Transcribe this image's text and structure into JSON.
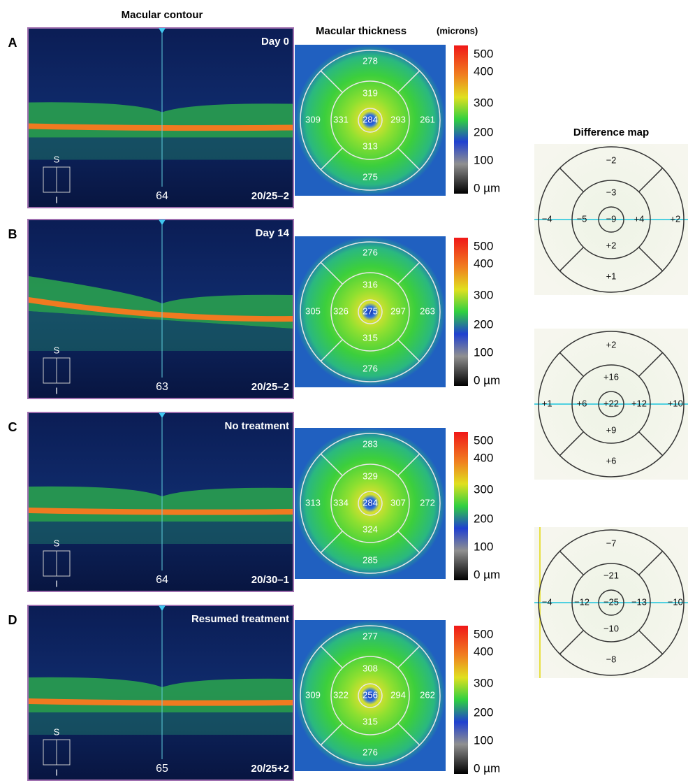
{
  "headers": {
    "macular_contour": "Macular contour",
    "macular_thickness": "Macular thickness",
    "thickness_unit": "(microns)",
    "difference_map": "Difference map"
  },
  "colorbar_labels": [
    "500",
    "400",
    "300",
    "200",
    "100",
    "0 µm"
  ],
  "rows": [
    {
      "label": "A",
      "oct": {
        "timepoint": "Day 0",
        "position": "64",
        "acuity": "20/25–2",
        "superior": "S",
        "inferior": "I"
      },
      "thickness": {
        "superior_outer": 278,
        "superior_inner": 319,
        "temporal_outer": 309,
        "temporal_inner": 331,
        "center": 284,
        "nasal_inner": 293,
        "nasal_outer": 261,
        "inferior_inner": 313,
        "inferior_outer": 275
      }
    },
    {
      "label": "B",
      "oct": {
        "timepoint": "Day 14",
        "position": "63",
        "acuity": "20/25–2",
        "superior": "S",
        "inferior": "I"
      },
      "thickness": {
        "superior_outer": 276,
        "superior_inner": 316,
        "temporal_outer": 305,
        "temporal_inner": 326,
        "center": 275,
        "nasal_inner": 297,
        "nasal_outer": 263,
        "inferior_inner": 315,
        "inferior_outer": 276
      }
    },
    {
      "label": "C",
      "oct": {
        "timepoint": "No treatment",
        "position": "64",
        "acuity": "20/30–1",
        "superior": "S",
        "inferior": "I"
      },
      "thickness": {
        "superior_outer": 283,
        "superior_inner": 329,
        "temporal_outer": 313,
        "temporal_inner": 334,
        "center": 284,
        "nasal_inner": 307,
        "nasal_outer": 272,
        "inferior_inner": 324,
        "inferior_outer": 285
      }
    },
    {
      "label": "D",
      "oct": {
        "timepoint": "Resumed treatment",
        "position": "65",
        "acuity": "20/25+2",
        "superior": "S",
        "inferior": "I"
      },
      "thickness": {
        "superior_outer": 277,
        "superior_inner": 308,
        "temporal_outer": 309,
        "temporal_inner": 322,
        "center": 256,
        "nasal_inner": 294,
        "nasal_outer": 262,
        "inferior_inner": 315,
        "inferior_outer": 276
      }
    }
  ],
  "difference_maps": [
    {
      "superior_outer": "−2",
      "superior_inner": "−3",
      "temporal_outer": "−4",
      "temporal_inner": "−5",
      "center": "−9",
      "nasal_inner": "+4",
      "nasal_outer": "+2",
      "inferior_inner": "+2",
      "inferior_outer": "+1"
    },
    {
      "superior_outer": "+2",
      "superior_inner": "+16",
      "temporal_outer": "+1",
      "temporal_inner": "+6",
      "center": "+22",
      "nasal_inner": "+12",
      "nasal_outer": "+10",
      "inferior_inner": "+9",
      "inferior_outer": "+6"
    },
    {
      "superior_outer": "−7",
      "superior_inner": "−21",
      "temporal_outer": "−4",
      "temporal_inner": "−12",
      "center": "−25",
      "nasal_inner": "−13",
      "nasal_outer": "−10",
      "inferior_inner": "−10",
      "inferior_outer": "−8"
    }
  ]
}
